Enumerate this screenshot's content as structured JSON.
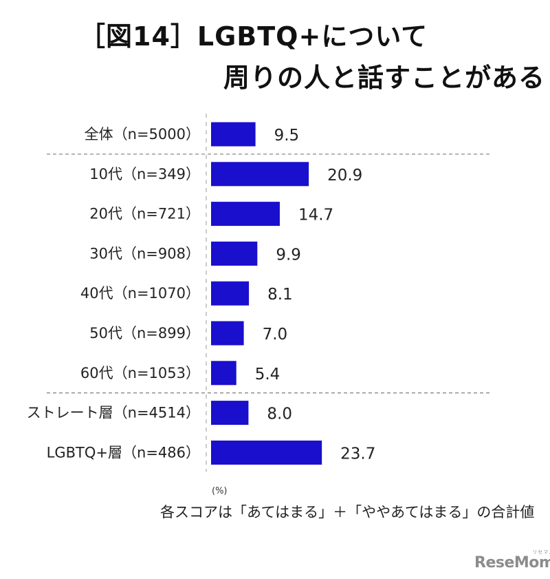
{
  "title_line1": "［図14］LGBTQ+について",
  "title_line2": "周りの人と話すことがある",
  "unit": "(%)",
  "footnote": "各スコアは「あてはまる」＋「ややあてはまる」の合計値",
  "logo": {
    "text": "ReseMom",
    "small": "リセマム"
  },
  "chart_data": {
    "type": "bar",
    "orientation": "horizontal",
    "categories": [
      "全体（n=5000）",
      "10代（n=349）",
      "20代（n=721）",
      "30代（n=908）",
      "40代（n=1070）",
      "50代（n=899）",
      "60代（n=1053）",
      "ストレート層（n=4514）",
      "LGBTQ+層（n=486）"
    ],
    "values": [
      9.5,
      20.9,
      14.7,
      9.9,
      8.1,
      7.0,
      5.4,
      8.0,
      23.7
    ],
    "value_labels": [
      "9.5",
      "20.9",
      "14.7",
      "9.9",
      "8.1",
      "7.0",
      "5.4",
      "8.0",
      "23.7"
    ],
    "bar_color": "#1a0fcc",
    "title": "［図14］LGBTQ+について周りの人と話すことがある",
    "unit": "(%)",
    "group_separators_after": [
      0,
      6
    ]
  }
}
